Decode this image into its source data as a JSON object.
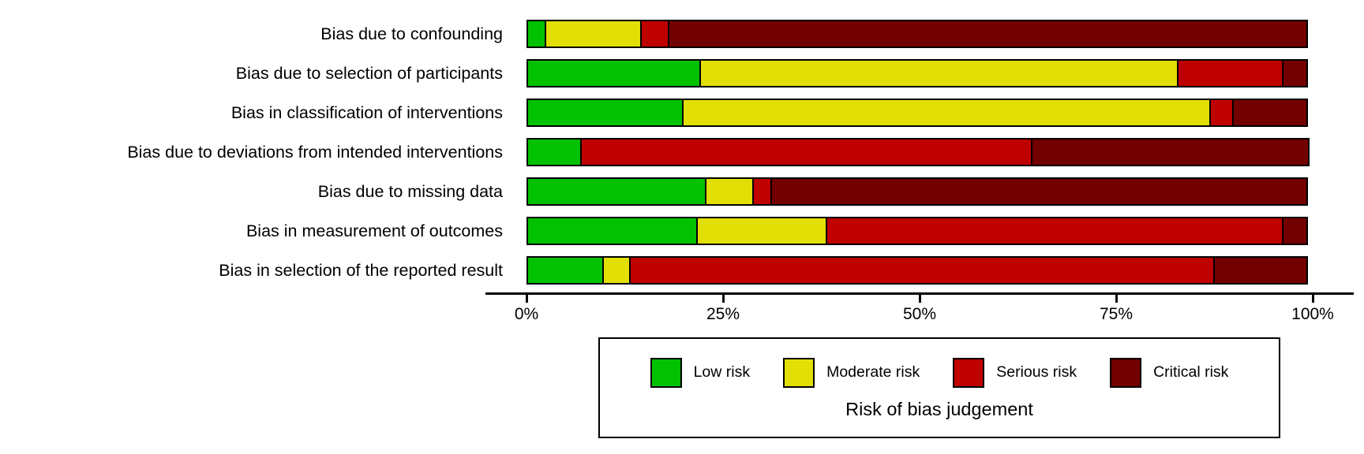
{
  "chart_data": {
    "type": "bar",
    "stacked": true,
    "orientation": "horizontal",
    "title": "",
    "xlabel": "",
    "ylabel": "",
    "xlim": [
      0,
      100
    ],
    "grid": false,
    "legend_position": "bottom",
    "legend_title": "Risk of bias judgement",
    "x_ticks": [
      "0%",
      "25%",
      "50%",
      "75%",
      "100%"
    ],
    "x_tick_values": [
      0,
      25,
      50,
      75,
      100
    ],
    "categories": [
      "Bias due to confounding",
      "Bias due to selection of participants",
      "Bias in classification of interventions",
      "Bias due to deviations from intended interventions",
      "Bias due to missing data",
      "Bias in measurement of outcomes",
      "Bias in selection of the reported result"
    ],
    "series": [
      {
        "name": "Low risk",
        "color": "#02C100",
        "values": [
          2.5,
          22.2,
          20.0,
          7.0,
          22.9,
          21.8,
          9.8
        ]
      },
      {
        "name": "Moderate risk",
        "color": "#E2DF07",
        "values": [
          12.4,
          60.9,
          67.3,
          0,
          6.2,
          16.7,
          3.7
        ]
      },
      {
        "name": "Serious risk",
        "color": "#BF0000",
        "values": [
          3.7,
          13.6,
          3.1,
          57.6,
          2.5,
          58.2,
          74.5
        ]
      },
      {
        "name": "Critical risk",
        "color": "#730000",
        "values": [
          81.4,
          3.3,
          9.6,
          35.4,
          68.4,
          3.3,
          12.0
        ]
      }
    ]
  }
}
